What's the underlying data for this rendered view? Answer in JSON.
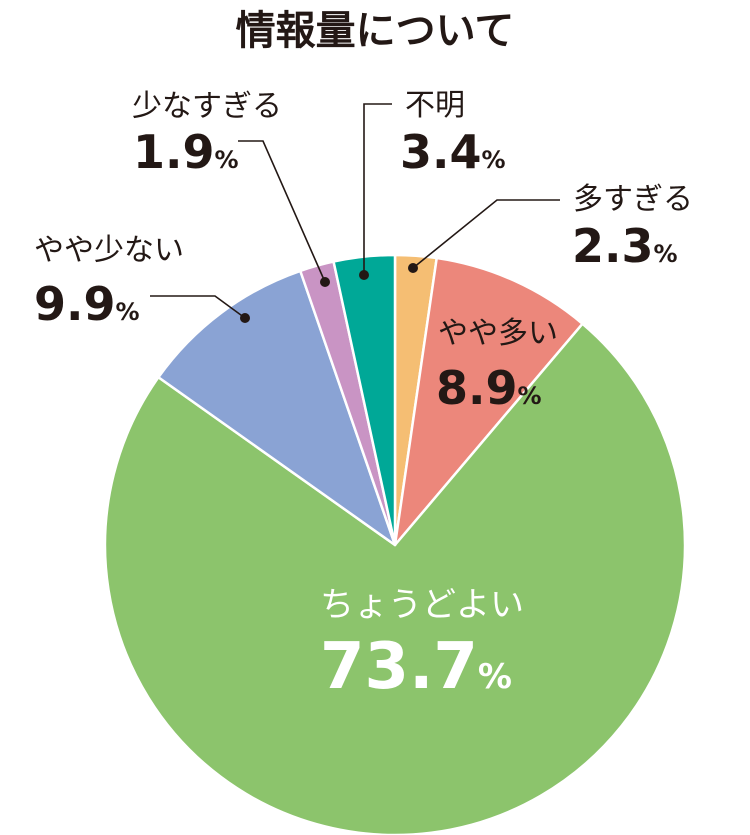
{
  "chart_data": {
    "type": "pie",
    "title": "情報量について",
    "unit": "%",
    "start": "top",
    "direction": "clockwise",
    "slices": [
      {
        "key": "ooi",
        "label": "多すぎる",
        "value": 2.3,
        "value_text": "2.3",
        "color": "#F5BE73"
      },
      {
        "key": "yayaooi",
        "label": "やや多い",
        "value": 8.9,
        "value_text": "8.9",
        "color": "#EC877B"
      },
      {
        "key": "choudo",
        "label": "ちょうどよい",
        "value": 73.7,
        "value_text": "73.7",
        "color": "#8CC46C"
      },
      {
        "key": "yayasukunai",
        "label": "やや少ない",
        "value": 9.9,
        "value_text": "9.9",
        "color": "#8AA3D4"
      },
      {
        "key": "sukunai",
        "label": "少なすぎる",
        "value": 1.9,
        "value_text": "1.9",
        "color": "#C994C4"
      },
      {
        "key": "fumei",
        "label": "不明",
        "value": 3.4,
        "value_text": "3.4",
        "color": "#00A897"
      }
    ]
  }
}
